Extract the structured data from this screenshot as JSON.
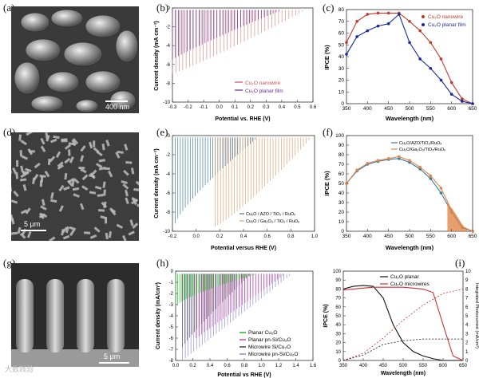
{
  "panels": {
    "a": {
      "label": "(a)",
      "scale": "400 nm"
    },
    "b": {
      "label": "(b)",
      "xlabel": "Potential vs. RHE (V)",
      "ylabel": "Current density (mA cm⁻²)",
      "xticks": [
        "-0.3",
        "-0.2",
        "-0.1",
        "0.0",
        "0.1",
        "0.2",
        "0.3",
        "0.4",
        "0.5",
        "0.6"
      ],
      "yticks": [
        "0",
        "-2",
        "-4",
        "-6",
        "-8",
        "-10"
      ],
      "legend": [
        "Cu₂O nanowire",
        "Cu₂O planar film"
      ]
    },
    "c": {
      "label": "(c)",
      "xlabel": "Wavelength (nm)",
      "ylabel": "IPCE (%)",
      "xticks": [
        "350",
        "400",
        "450",
        "500",
        "550",
        "600",
        "650"
      ],
      "yticks": [
        "0",
        "10",
        "20",
        "30",
        "40",
        "50",
        "60",
        "70",
        "80"
      ],
      "legend": [
        "Cu₂O nanowire",
        "Cu₂O planar film"
      ]
    },
    "d": {
      "label": "(d)",
      "scale": "5 μm"
    },
    "e": {
      "label": "(e)",
      "xlabel": "Potential versus RHE (V)",
      "ylabel": "Current density (mA cm⁻²)",
      "xticks": [
        "-0.2",
        "0.0",
        "0.2",
        "0.4",
        "0.6",
        "0.8",
        "1.0"
      ],
      "yticks": [
        "0",
        "-2",
        "-4",
        "-6",
        "-8",
        "-10"
      ],
      "legend": [
        "Cu₂O / AZO / TiO₂ / RuOₓ",
        "Cu₂O / Ga₂O₃ / TiO₂ / RuOₓ"
      ]
    },
    "f": {
      "label": "(f)",
      "xlabel": "Wavelength (nm)",
      "ylabel": "IPCE (%)",
      "xticks": [
        "350",
        "400",
        "450",
        "500",
        "550",
        "600",
        "650"
      ],
      "yticks": [
        "0",
        "10",
        "20",
        "30",
        "40",
        "50",
        "60",
        "70",
        "80",
        "90",
        "100"
      ],
      "legend": [
        "Cu₂O/AZO/TiO₂/RuOₓ",
        "Cu₂O/Ga₂O₃/TiO₂/RuOₓ"
      ]
    },
    "g": {
      "label": "(g)",
      "scale": "5 μm"
    },
    "h": {
      "label": "(h)",
      "xlabel": "Potential vs RHE (V)",
      "ylabel": "Current density (mA/cm²)",
      "xticks": [
        "0.0",
        "0.2",
        "0.4",
        "0.6",
        "0.8",
        "1.0",
        "1.2",
        "1.4",
        "1.6"
      ],
      "yticks": [
        "0",
        "-1",
        "-2",
        "-3",
        "-4",
        "-5",
        "-6",
        "-7",
        "-8"
      ],
      "legend": [
        "Planar Cu₂O",
        "Planar pn-Si/Cu₂O",
        "Microwire Si/Cu₂O",
        "Microwire pn-Si/Cu₂O"
      ]
    },
    "i": {
      "label": "(i)",
      "xlabel": "Wavelength (nm)",
      "ylabel": "IPCE (%)",
      "ylabel2": "Integrated Photocurrent (mA/cm²)",
      "xticks": [
        "350",
        "400",
        "450",
        "500",
        "550",
        "600",
        "650"
      ],
      "yticks": [
        "0",
        "10",
        "20",
        "30",
        "40",
        "50",
        "60",
        "70",
        "80",
        "90",
        "100"
      ],
      "yticks2": [
        "0",
        "1",
        "2",
        "3",
        "4",
        "5",
        "6",
        "7",
        "8",
        "9",
        "10"
      ],
      "legend": [
        "Cu₂O planar",
        "Cu₂O microwires"
      ]
    }
  },
  "chart_data": [
    {
      "type": "line",
      "panel": "c",
      "x": [
        350,
        375,
        400,
        425,
        450,
        475,
        500,
        525,
        550,
        575,
        600,
        625,
        650
      ],
      "series": [
        {
          "name": "Cu₂O nanowire",
          "values": [
            52,
            70,
            76,
            77,
            77,
            77,
            70,
            62,
            52,
            38,
            18,
            4,
            0
          ]
        },
        {
          "name": "Cu₂O planar film",
          "values": [
            42,
            57,
            62,
            66,
            68,
            76,
            52,
            38,
            30,
            20,
            8,
            2,
            0
          ]
        }
      ],
      "xlim": [
        350,
        650
      ],
      "ylim": [
        0,
        80
      ]
    },
    {
      "type": "line",
      "panel": "f",
      "x": [
        350,
        375,
        400,
        425,
        450,
        475,
        500,
        525,
        550,
        575,
        600,
        625,
        650
      ],
      "series": [
        {
          "name": "Cu₂O/AZO/TiO₂/RuOₓ",
          "values": [
            50,
            63,
            70,
            73,
            75,
            76,
            72,
            65,
            55,
            40,
            20,
            4,
            0
          ]
        },
        {
          "name": "Cu₂O/Ga₂O₃/TiO₂/RuOₓ",
          "values": [
            50,
            64,
            71,
            74,
            76,
            78,
            74,
            67,
            58,
            45,
            22,
            5,
            0
          ]
        }
      ],
      "xlim": [
        350,
        650
      ],
      "ylim": [
        0,
        100
      ]
    },
    {
      "type": "line",
      "panel": "i",
      "x": [
        350,
        375,
        400,
        425,
        450,
        475,
        500,
        525,
        550,
        575,
        600,
        625,
        650
      ],
      "series": [
        {
          "name": "Cu₂O planar",
          "values": [
            80,
            83,
            84,
            83,
            70,
            40,
            20,
            10,
            5,
            2,
            0,
            0,
            0
          ]
        },
        {
          "name": "Cu₂O microwires",
          "values": [
            79,
            80,
            81,
            82,
            82,
            82,
            82,
            81,
            80,
            76,
            40,
            5,
            0
          ]
        }
      ],
      "xlim": [
        350,
        650
      ],
      "ylim": [
        0,
        100
      ]
    }
  ],
  "watermark": "大数践验"
}
